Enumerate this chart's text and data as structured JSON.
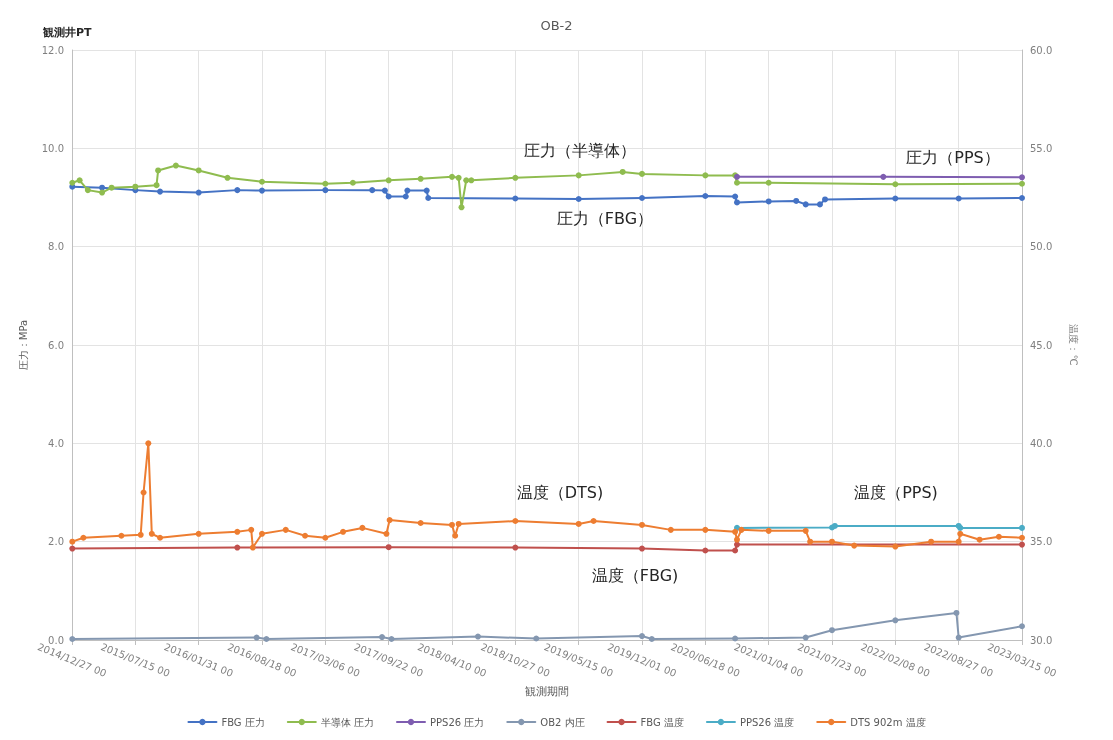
{
  "chart_data": {
    "type": "line",
    "title": "OB-2",
    "subtitle": "観測井PT",
    "xlabel": "観測期間",
    "ylabel": "圧力：MPa",
    "y2label": "温度：℃",
    "xlim": [
      "2014-12-27",
      "2023-03-15"
    ],
    "xticks": [
      {
        "value": "2014-12-27",
        "label": "2014/12/27 00"
      },
      {
        "value": "2015-07-15",
        "label": "2015/07/15 00"
      },
      {
        "value": "2016-01-31",
        "label": "2016/01/31 00"
      },
      {
        "value": "2016-08-18",
        "label": "2016/08/18 00"
      },
      {
        "value": "2017-03-06",
        "label": "2017/03/06 00"
      },
      {
        "value": "2017-09-22",
        "label": "2017/09/22 00"
      },
      {
        "value": "2018-04-10",
        "label": "2018/04/10 00"
      },
      {
        "value": "2018-10-27",
        "label": "2018/10/27 00"
      },
      {
        "value": "2019-05-15",
        "label": "2019/05/15 00"
      },
      {
        "value": "2019-12-01",
        "label": "2019/12/01 00"
      },
      {
        "value": "2020-06-18",
        "label": "2020/06/18 00"
      },
      {
        "value": "2021-01-04",
        "label": "2021/01/04 00"
      },
      {
        "value": "2021-07-23",
        "label": "2021/07/23 00"
      },
      {
        "value": "2022-02-08",
        "label": "2022/02/08 00"
      },
      {
        "value": "2022-08-27",
        "label": "2022/08/27 00"
      },
      {
        "value": "2023-03-15",
        "label": "2023/03/15 00"
      }
    ],
    "ylim": [
      0,
      12
    ],
    "yticks": [
      {
        "value": 0,
        "label": "0.0"
      },
      {
        "value": 2,
        "label": "2.0"
      },
      {
        "value": 4,
        "label": "4.0"
      },
      {
        "value": 6,
        "label": "6.0"
      },
      {
        "value": 8,
        "label": "8.0"
      },
      {
        "value": 10,
        "label": "10.0"
      },
      {
        "value": 12,
        "label": "12.0"
      }
    ],
    "y2lim": [
      30,
      60
    ],
    "y2ticks": [
      {
        "value": 30,
        "label": "30.0"
      },
      {
        "value": 35,
        "label": "35.0"
      },
      {
        "value": 40,
        "label": "40.0"
      },
      {
        "value": 45,
        "label": "45.0"
      },
      {
        "value": 50,
        "label": "50.0"
      },
      {
        "value": 55,
        "label": "55.0"
      },
      {
        "value": 60,
        "label": "60.0"
      }
    ],
    "grid": true,
    "legend": "bottom",
    "marker": "circle",
    "line_style": "solid",
    "series": [
      {
        "name": "FBG 圧力",
        "color": "#4472c4",
        "x": [
          "2014-12-28",
          "2015-04-01",
          "2015-07-15",
          "2015-10-01",
          "2016-01-31",
          "2016-06-01",
          "2016-08-18",
          "2017-03-06",
          "2017-08-01",
          "2017-09-10",
          "2017-09-22",
          "2017-11-15",
          "2017-11-20",
          "2018-01-20",
          "2018-01-25",
          "2018-10-27",
          "2019-05-15",
          "2019-12-01",
          "2020-06-18",
          "2020-09-20",
          "2020-09-26",
          "2021-01-04",
          "2021-04-01",
          "2021-05-01",
          "2021-06-15",
          "2021-07-01",
          "2022-02-08",
          "2022-08-27",
          "2023-03-15"
        ],
        "values": [
          9.22,
          9.2,
          9.15,
          9.12,
          9.1,
          9.15,
          9.14,
          9.15,
          9.15,
          9.14,
          9.02,
          9.02,
          9.14,
          9.14,
          8.99,
          8.98,
          8.97,
          8.99,
          9.03,
          9.02,
          8.9,
          8.92,
          8.93,
          8.86,
          8.86,
          8.96,
          8.98,
          8.98,
          8.99
        ]
      },
      {
        "name": "半導体 圧力",
        "color": "#8fbc4f",
        "x": [
          "2014-12-28",
          "2015-01-20",
          "2015-02-15",
          "2015-04-01",
          "2015-05-01",
          "2015-07-15",
          "2015-09-20",
          "2015-09-25",
          "2015-11-20",
          "2016-01-31",
          "2016-05-01",
          "2016-08-18",
          "2017-03-06",
          "2017-06-01",
          "2017-09-22",
          "2018-01-01",
          "2018-04-10",
          "2018-05-01",
          "2018-05-10",
          "2018-05-25",
          "2018-06-10",
          "2018-10-27",
          "2019-05-15",
          "2019-10-01",
          "2019-12-01",
          "2020-06-18",
          "2020-09-20",
          "2020-09-26",
          "2021-01-04",
          "2022-02-08",
          "2023-03-15"
        ],
        "values": [
          9.3,
          9.35,
          9.15,
          9.1,
          9.2,
          9.22,
          9.25,
          9.55,
          9.65,
          9.55,
          9.4,
          9.32,
          9.28,
          9.3,
          9.35,
          9.38,
          9.42,
          9.4,
          8.8,
          9.35,
          9.35,
          9.4,
          9.45,
          9.52,
          9.48,
          9.45,
          9.45,
          9.3,
          9.3,
          9.27,
          9.28
        ]
      },
      {
        "name": "PPS26 圧力",
        "color": "#7e5db0",
        "x": [
          "2020-09-26",
          "2022-01-01",
          "2023-03-15"
        ],
        "values": [
          9.42,
          9.42,
          9.41
        ]
      },
      {
        "name": "OB2 内圧",
        "color": "#8497b0",
        "x": [
          "2014-12-28",
          "2016-08-01",
          "2016-09-01",
          "2017-09-01",
          "2017-10-01",
          "2018-07-01",
          "2019-01-01",
          "2019-12-01",
          "2020-01-01",
          "2020-09-20",
          "2021-05-01",
          "2021-07-23",
          "2022-02-08",
          "2022-08-20",
          "2022-08-27",
          "2023-03-15"
        ],
        "values": [
          0.02,
          0.05,
          0.02,
          0.06,
          0.02,
          0.07,
          0.03,
          0.08,
          0.02,
          0.03,
          0.05,
          0.2,
          0.4,
          0.55,
          0.05,
          0.28
        ]
      },
      {
        "name": "FBG 温度",
        "color": "#c0504d",
        "axis": "y2",
        "x": [
          "2014-12-28",
          "2016-06-01",
          "2017-09-22",
          "2018-10-27",
          "2019-12-01",
          "2020-06-18",
          "2020-09-20",
          "2020-09-26",
          "2023-03-15"
        ],
        "values": [
          34.65,
          34.7,
          34.72,
          34.7,
          34.65,
          34.55,
          34.55,
          34.85,
          34.85
        ]
      },
      {
        "name": "PPS26 温度",
        "color": "#4bacc6",
        "axis": "y2",
        "x": [
          "2020-09-26",
          "2021-07-23",
          "2021-08-01",
          "2022-08-27",
          "2022-09-01",
          "2023-03-15"
        ],
        "values": [
          35.7,
          35.72,
          35.8,
          35.8,
          35.7,
          35.7
        ]
      },
      {
        "name": "DTS 902m 温度",
        "color": "#ed7d31",
        "axis": "y2",
        "x": [
          "2014-12-28",
          "2015-02-01",
          "2015-06-01",
          "2015-08-01",
          "2015-08-10",
          "2015-08-25",
          "2015-09-05",
          "2015-10-01",
          "2016-01-31",
          "2016-06-01",
          "2016-07-15",
          "2016-07-20",
          "2016-08-18",
          "2016-11-01",
          "2017-01-01",
          "2017-03-06",
          "2017-05-01",
          "2017-07-01",
          "2017-09-15",
          "2017-09-25",
          "2018-01-01",
          "2018-04-10",
          "2018-04-20",
          "2018-05-01",
          "2018-10-27",
          "2019-05-15",
          "2019-07-01",
          "2019-12-01",
          "2020-03-01",
          "2020-06-18",
          "2020-09-20",
          "2020-09-26",
          "2020-10-10",
          "2021-01-04",
          "2021-05-01",
          "2021-05-15",
          "2021-07-23",
          "2021-10-01",
          "2022-02-08",
          "2022-06-01",
          "2022-08-27",
          "2022-09-01",
          "2022-11-01",
          "2023-01-01",
          "2023-03-15"
        ],
        "values": [
          35.0,
          35.2,
          35.3,
          35.35,
          37.5,
          40.0,
          35.4,
          35.2,
          35.4,
          35.5,
          35.6,
          34.7,
          35.4,
          35.6,
          35.3,
          35.2,
          35.5,
          35.7,
          35.4,
          36.1,
          35.95,
          35.85,
          35.3,
          35.9,
          36.05,
          35.9,
          36.05,
          35.85,
          35.6,
          35.6,
          35.5,
          35.1,
          35.6,
          35.55,
          35.55,
          35.0,
          35.0,
          34.8,
          34.75,
          35.0,
          35.0,
          35.4,
          35.1,
          35.25,
          35.2
        ]
      }
    ],
    "annotations": [
      "圧力（半導体）",
      "圧力（PPS）",
      "圧力（FBG）",
      "温度（DTS)",
      "温度（PPS)",
      "温度（FBG)"
    ]
  }
}
